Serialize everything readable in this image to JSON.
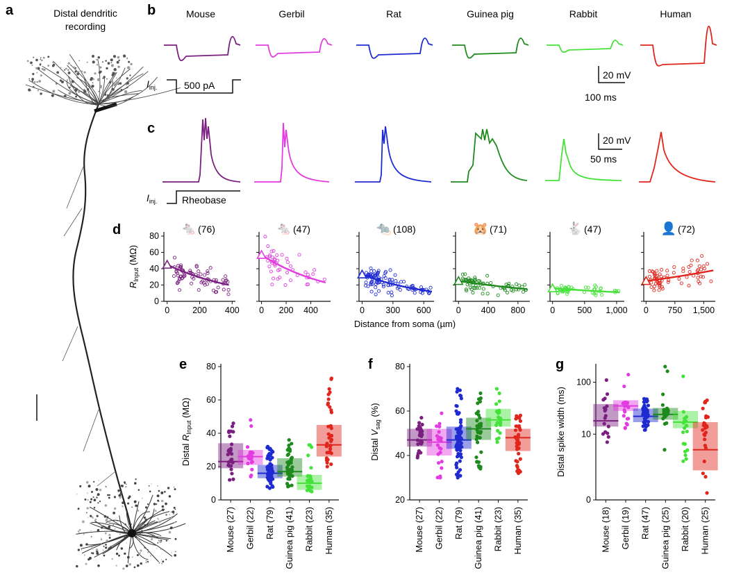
{
  "panels": {
    "a": "a",
    "b": "b",
    "c": "c",
    "d": "d",
    "e": "e",
    "f": "f",
    "g": "g"
  },
  "panel_a": {
    "title_line1": "Distal dendritic",
    "title_line2": "recording"
  },
  "species": [
    {
      "name": "Mouse",
      "color": "#7a1f7f"
    },
    {
      "name": "Gerbil",
      "color": "#e23ce0"
    },
    {
      "name": "Rat",
      "color": "#1f2bd1"
    },
    {
      "name": "Guinea pig",
      "color": "#1e8a1e"
    },
    {
      "name": "Rabbit",
      "color": "#45e23a"
    },
    {
      "name": "Human",
      "color": "#e0261c"
    }
  ],
  "panel_b": {
    "inj_label": "I",
    "inj_sub": "inj.",
    "step_label": "500 pA",
    "scale_v": "20 mV",
    "scale_t": "100 ms"
  },
  "panel_c": {
    "inj_label": "I",
    "inj_sub": "inj.",
    "step_label": "Rheobase",
    "scale_v": "20 mV",
    "scale_t": "50 ms"
  },
  "panel_d": {
    "ylabel_main": "R",
    "ylabel_sub": "Input",
    "ylabel_unit": " (MΩ)",
    "xlabel": "Distance from soma (µm)",
    "yticks": [
      "0",
      "20",
      "40",
      "60",
      "80"
    ]
  },
  "chart_data": [
    {
      "type": "scatter",
      "panel": "d",
      "ylabel": "RInput (MΩ)",
      "xlabel": "Distance from soma (µm)",
      "ylim": [
        0,
        80
      ],
      "subplots": [
        {
          "species": "Mouse",
          "n": "(76)",
          "xlim": [
            -20,
            420
          ],
          "xticks": [
            "0",
            "200",
            "400"
          ],
          "xtickvals": [
            0,
            200,
            400
          ],
          "fit_start": 45,
          "fit_end": 20,
          "fit_xmax": 380
        },
        {
          "species": "Gerbil",
          "n": "(47)",
          "xlim": [
            -20,
            560
          ],
          "xticks": [
            "0",
            "200",
            "400"
          ],
          "xtickvals": [
            0,
            200,
            400
          ],
          "fit_start": 57,
          "fit_end": 23,
          "fit_xmax": 520
        },
        {
          "species": "Rat",
          "n": "(108)",
          "xlim": [
            -30,
            700
          ],
          "xticks": [
            "0",
            "300",
            "600"
          ],
          "xtickvals": [
            0,
            300,
            600
          ],
          "fit_start": 33,
          "fit_end": 12,
          "fit_xmax": 680
        },
        {
          "species": "Guinea pig",
          "n": "(71)",
          "xlim": [
            -40,
            960
          ],
          "xticks": [
            "0",
            "400",
            "800"
          ],
          "xtickvals": [
            0,
            400,
            800
          ],
          "fit_start": 25,
          "fit_end": 15,
          "fit_xmax": 920
        },
        {
          "species": "Rabbit",
          "n": "(47)",
          "xlim": [
            -40,
            1120
          ],
          "xticks": [
            "0",
            "500",
            "1,000"
          ],
          "xtickvals": [
            0,
            500,
            1000
          ],
          "fit_start": 16,
          "fit_end": 11,
          "fit_xmax": 1050
        },
        {
          "species": "Human",
          "n": "(72)",
          "xlim": [
            -60,
            1800
          ],
          "xticks": [
            "0",
            "750",
            "1,500"
          ],
          "xtickvals": [
            0,
            750,
            1500
          ],
          "fit_start": 25,
          "fit_end": 38,
          "fit_xmax": 1750
        }
      ]
    },
    {
      "type": "box",
      "panel": "e",
      "ylabel": "Distal RInput (MΩ)",
      "ylim": [
        0,
        80
      ],
      "yticks": [
        "0",
        "20",
        "40",
        "60",
        "80"
      ],
      "categories": [
        "Mouse (27)",
        "Gerbil (22)",
        "Rat (79)",
        "Guinea pig (41)",
        "Rabbit (23)",
        "Human (35)"
      ],
      "median": [
        23,
        26,
        16,
        17,
        10,
        33
      ],
      "q1": [
        19,
        21,
        13,
        14,
        6,
        26
      ],
      "q3": [
        34,
        30,
        21,
        25,
        15,
        45
      ],
      "min": [
        12,
        14,
        7,
        8,
        5,
        20
      ],
      "max": [
        46,
        48,
        32,
        36,
        33,
        73
      ]
    },
    {
      "type": "box",
      "panel": "f",
      "ylabel": "Distal Vsag (%)",
      "ylim": [
        20,
        80
      ],
      "yticks": [
        "20",
        "40",
        "60",
        "80"
      ],
      "categories": [
        "Mouse (27)",
        "Gerbil (22)",
        "Rat (79)",
        "Guinea pig (41)",
        "Rabbit (23)",
        "Human (35)"
      ],
      "median": [
        47,
        46,
        47,
        52,
        56,
        48
      ],
      "q1": [
        44,
        40,
        43,
        47,
        53,
        42
      ],
      "q3": [
        52,
        52,
        53,
        57,
        61,
        52
      ],
      "min": [
        39,
        30,
        30,
        34,
        46,
        32
      ],
      "max": [
        57,
        59,
        70,
        68,
        70,
        58
      ]
    },
    {
      "type": "box",
      "panel": "g",
      "ylabel": "Distal spike width (ms)",
      "ylim": [
        0,
        200
      ],
      "yticks": [
        "0",
        "10",
        "100"
      ],
      "categories": [
        "Mouse (18)",
        "Gerbil (19)",
        "Rat (47)",
        "Guinea pig (25)",
        "Rabbit (20)",
        "Human (25)"
      ],
      "median": [
        18,
        35,
        22,
        24,
        17,
        5
      ],
      "q1": [
        14,
        28,
        17,
        19,
        13,
        2
      ],
      "q3": [
        38,
        45,
        31,
        32,
        28,
        17
      ],
      "min": [
        7,
        13,
        12,
        5,
        3,
        0.5
      ],
      "max": [
        110,
        140,
        48,
        200,
        130,
        45
      ]
    }
  ]
}
